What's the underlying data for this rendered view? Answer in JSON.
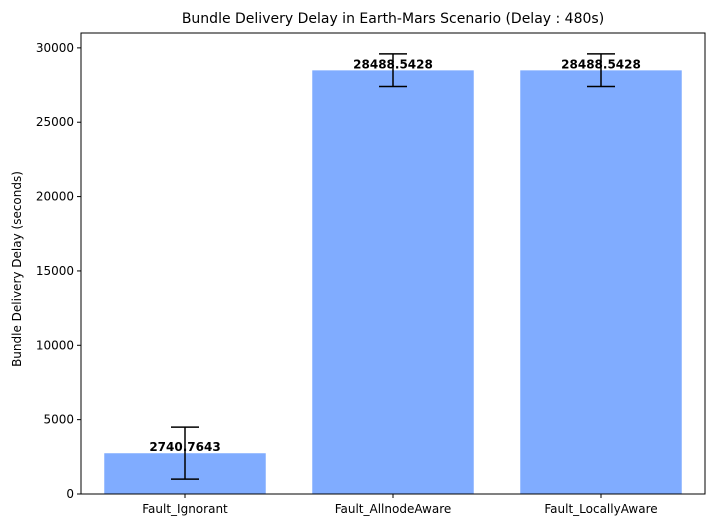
{
  "chart_data": {
    "type": "bar",
    "title": "Bundle Delivery Delay in Earth-Mars Scenario (Delay : 480s)",
    "xlabel": "",
    "ylabel": "Bundle Delivery Delay (seconds)",
    "categories": [
      "Fault_Ignorant",
      "Fault_AllnodeAware",
      "Fault_LocallyAware"
    ],
    "values": [
      2740.7643,
      28488.5428,
      28488.5428
    ],
    "value_labels": [
      "2740.7643",
      "28488.5428",
      "28488.5428"
    ],
    "error_bars": [
      {
        "low": 1000,
        "high": 4500
      },
      {
        "low": 27400,
        "high": 29600
      },
      {
        "low": 27400,
        "high": 29600
      }
    ],
    "ylim": [
      0,
      31000
    ],
    "yticks": [
      0,
      5000,
      10000,
      15000,
      20000,
      25000,
      30000
    ],
    "ytick_labels": [
      "0",
      "5000",
      "10000",
      "15000",
      "20000",
      "25000",
      "30000"
    ],
    "grid": false,
    "legend": "none",
    "bar_color": "#80acff",
    "error_color": "#000000"
  }
}
